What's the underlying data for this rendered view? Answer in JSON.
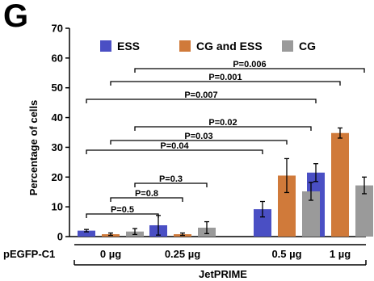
{
  "panel_label": "G",
  "chart_data": {
    "type": "bar",
    "title": "",
    "xlabel": "JetPRIME",
    "ylabel": "Percentage of cells",
    "row_label": "pEGFP-C1",
    "ylim": [
      0,
      70
    ],
    "yticks": [
      "0",
      "10",
      "20",
      "30",
      "40",
      "50",
      "60",
      "70"
    ],
    "categories": [
      "0 µg",
      "0.25 µg",
      "0.5 µg",
      "1 µg"
    ],
    "legend_position": "top",
    "grid": false,
    "series": [
      {
        "name": "ESS",
        "color": "#4a4fc4",
        "values": [
          2.0,
          3.8,
          9.2,
          21.5
        ],
        "errors": [
          0.4,
          3.3,
          2.6,
          3.0
        ]
      },
      {
        "name": "CG and ESS",
        "color": "#d07a3a",
        "values": [
          0.8,
          0.8,
          20.5,
          34.8
        ],
        "errors": [
          0.4,
          0.4,
          5.7,
          1.7
        ]
      },
      {
        "name": "CG",
        "color": "#9a9a9a",
        "values": [
          1.7,
          3.0,
          15.2,
          17.2
        ],
        "errors": [
          1.0,
          2.0,
          3.0,
          2.8
        ]
      }
    ],
    "comparisons": [
      {
        "label": "P=0.5",
        "from": [
          0,
          0
        ],
        "to": [
          1,
          0
        ]
      },
      {
        "label": "P=0.8",
        "from": [
          0,
          1
        ],
        "to": [
          1,
          1
        ]
      },
      {
        "label": "P=0.3",
        "from": [
          0,
          2
        ],
        "to": [
          1,
          2
        ]
      },
      {
        "label": "P=0.04",
        "from": [
          0,
          0
        ],
        "to": [
          2,
          0
        ]
      },
      {
        "label": "P=0.03",
        "from": [
          0,
          1
        ],
        "to": [
          2,
          1
        ]
      },
      {
        "label": "P=0.02",
        "from": [
          0,
          2
        ],
        "to": [
          2,
          2
        ]
      },
      {
        "label": "P=0.007",
        "from": [
          0,
          0
        ],
        "to": [
          3,
          0
        ]
      },
      {
        "label": "P=0.001",
        "from": [
          0,
          1
        ],
        "to": [
          3,
          1
        ]
      },
      {
        "label": "P=0.006",
        "from": [
          0,
          2
        ],
        "to": [
          3,
          2
        ]
      }
    ]
  }
}
